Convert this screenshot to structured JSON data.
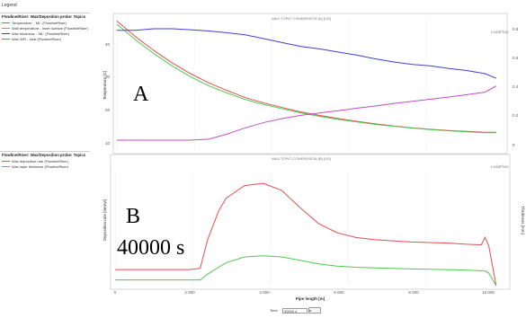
{
  "legend_panel": {
    "header": "Legend",
    "sections": [
      {
        "title": "Flowline/Riser: Wax/Deposition probe: Topics",
        "items": [
          {
            "label": "Temperature - 'ML' (FlowlineRiser)",
            "color": "#e05050"
          },
          {
            "label": "Wall temperature - inner surface (FlowlineRiser)",
            "color": "#50c850"
          },
          {
            "label": "Wax thickness - 'ML' (FlowlineRiser)",
            "color": "#4040d0"
          },
          {
            "label": "Wax WFI - total (FlowlineRiser)",
            "color": "#c050c0"
          }
        ]
      },
      {
        "title": "Flowline/Riser: Wax/Deposition probe: Topics",
        "items": [
          {
            "label": "Wax deposition rate (FlowlineRiser)",
            "color": "#e05050"
          },
          {
            "label": "Wax layer thickness (FlowlineRiser)",
            "color": "#50c850"
          }
        ]
      }
    ]
  },
  "chart_top": {
    "title": "WAX TOPIC COMPARISON (A) [US]",
    "logo": "LedaFlow",
    "ylabel_left": "Temperature [C]",
    "ylabel_right": "",
    "yticks_left": [
      "40",
      "30",
      "20",
      "10"
    ],
    "yticks_right": [
      "0.8",
      "0.6",
      "0.4",
      "0.2",
      "0"
    ]
  },
  "chart_bottom": {
    "title": "WAX TOPIC COMPARISON (B) [US]",
    "logo": "LedaFlow",
    "ylabel_left": "Deposition rate [mm/yr]",
    "ylabel_right": "Thickness [mm]",
    "xlabel": "Pipe length [m]",
    "xticks": [
      "0",
      "2 000",
      "4 000",
      "6 000",
      "8 000",
      "10 000"
    ]
  },
  "annotations": {
    "a": "A",
    "b": "B",
    "time": "40000 s"
  },
  "time_control": {
    "label": "Time",
    "value": "40000 s",
    "unit": "s"
  },
  "chart_data": [
    {
      "type": "line",
      "title": "WAX TOPIC COMPARISON (A) [US]",
      "xlabel": "",
      "ylabel": "Temperature [C]",
      "xlim": [
        0,
        10500
      ],
      "ylim": [
        5,
        48
      ],
      "x": [
        0,
        500,
        1000,
        1500,
        2000,
        2500,
        3000,
        3500,
        4000,
        4500,
        5000,
        5500,
        6000,
        6500,
        7000,
        7500,
        8000,
        8500,
        9000,
        9500,
        10000,
        10300
      ],
      "series": [
        {
          "name": "Temperature - 'ML'",
          "color": "#e05050",
          "axis": "left",
          "values": [
            47,
            42,
            37.5,
            33.5,
            30,
            27,
            24.5,
            22.2,
            20.5,
            19,
            17.6,
            16.5,
            15.5,
            14.6,
            13.8,
            13.1,
            12.5,
            12,
            11.6,
            11.3,
            11,
            11
          ]
        },
        {
          "name": "Wall temperature - inner surface",
          "color": "#50c850",
          "axis": "left",
          "values": [
            46,
            41,
            36.5,
            32.5,
            29,
            26,
            23.7,
            21.6,
            20,
            18.6,
            17.3,
            16.2,
            15.2,
            14.4,
            13.6,
            13,
            12.4,
            11.9,
            11.5,
            11.2,
            10.9,
            10.9
          ]
        },
        {
          "name": "Wax thickness - 'ML'",
          "color": "#4040d0",
          "axis": "left",
          "values": [
            44,
            44,
            44.5,
            44.5,
            44.2,
            43.8,
            43.2,
            42.5,
            41.3,
            40,
            38.8,
            38,
            37,
            36,
            34.8,
            33.8,
            33,
            32.5,
            31.7,
            31,
            30,
            28.5
          ]
        },
        {
          "name": "Wax WFI - total",
          "color": "#c050c0",
          "axis": "left",
          "values": [
            8.5,
            8.5,
            8.5,
            8.5,
            8.5,
            8.8,
            10.5,
            12.5,
            14.2,
            15.5,
            16.5,
            17.3,
            18,
            18.8,
            19.5,
            20.3,
            21,
            21.7,
            22.4,
            23.2,
            24,
            26
          ]
        }
      ]
    },
    {
      "type": "line",
      "title": "WAX TOPIC COMPARISON (B) [US]",
      "xlabel": "Pipe length [m]",
      "ylabel": "Deposition rate [mm/yr]",
      "xlim": [
        0,
        10500
      ],
      "ylim": [
        0,
        10
      ],
      "x": [
        0,
        500,
        1000,
        1500,
        2000,
        2300,
        2500,
        2800,
        3000,
        3500,
        4000,
        4500,
        5000,
        5500,
        6000,
        6500,
        7000,
        7500,
        8000,
        8500,
        9000,
        9500,
        9900,
        10000,
        10100,
        10300
      ],
      "series": [
        {
          "name": "Wax deposition rate",
          "color": "#e05050",
          "values": [
            1.4,
            1.4,
            1.4,
            1.4,
            1.4,
            1.5,
            4.0,
            6.5,
            7.6,
            8.7,
            8.9,
            8.3,
            6.8,
            5.4,
            4.6,
            4.2,
            4.0,
            3.9,
            3.8,
            3.75,
            3.7,
            3.6,
            3.55,
            4.2,
            3.5,
            0
          ]
        },
        {
          "name": "Wax layer thickness",
          "color": "#50c850",
          "values": [
            0.5,
            0.5,
            0.5,
            0.5,
            0.5,
            0.5,
            1.0,
            1.6,
            2.0,
            2.5,
            2.6,
            2.5,
            2.2,
            1.9,
            1.7,
            1.6,
            1.55,
            1.5,
            1.45,
            1.42,
            1.4,
            1.35,
            1.3,
            1.3,
            1.1,
            0
          ]
        }
      ]
    }
  ]
}
